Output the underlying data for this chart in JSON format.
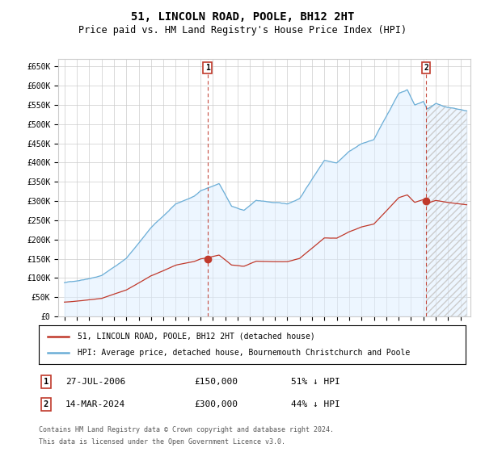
{
  "title": "51, LINCOLN ROAD, POOLE, BH12 2HT",
  "subtitle": "Price paid vs. HM Land Registry's House Price Index (HPI)",
  "ylabel_ticks": [
    "£0",
    "£50K",
    "£100K",
    "£150K",
    "£200K",
    "£250K",
    "£300K",
    "£350K",
    "£400K",
    "£450K",
    "£500K",
    "£550K",
    "£600K",
    "£650K"
  ],
  "ytick_values": [
    0,
    50000,
    100000,
    150000,
    200000,
    250000,
    300000,
    350000,
    400000,
    450000,
    500000,
    550000,
    600000,
    650000
  ],
  "ylim": [
    0,
    670000
  ],
  "hpi_color": "#6baed6",
  "price_color": "#c0392b",
  "transaction1_x": 2006.57,
  "transaction1_y": 150000,
  "transaction2_x": 2024.21,
  "transaction2_y": 300000,
  "legend_label_red": "51, LINCOLN ROAD, POOLE, BH12 2HT (detached house)",
  "legend_label_blue": "HPI: Average price, detached house, Bournemouth Christchurch and Poole",
  "footnote1": "Contains HM Land Registry data © Crown copyright and database right 2024.",
  "footnote2": "This data is licensed under the Open Government Licence v3.0.",
  "background_color": "#ffffff",
  "grid_color": "#cccccc",
  "hpi_fill_color": "#ddeeff",
  "hatch_color": "#cccccc",
  "xlim_left": 1994.5,
  "xlim_right": 2027.8
}
